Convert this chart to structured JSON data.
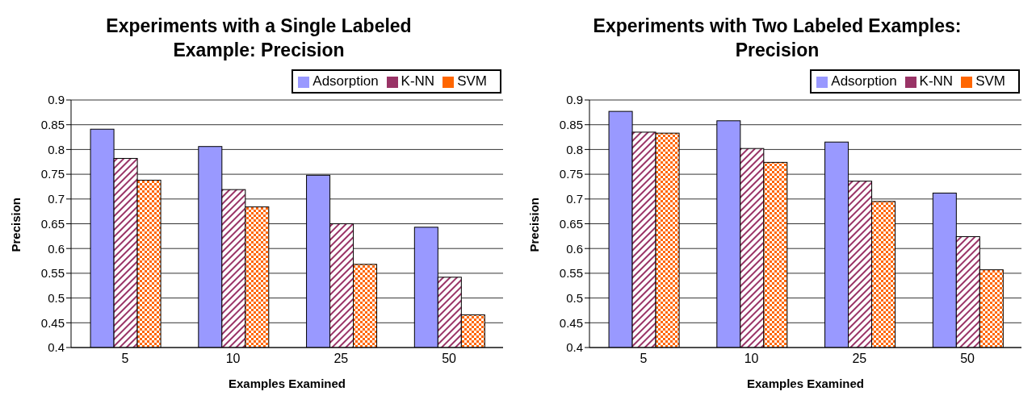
{
  "chart_data": [
    {
      "type": "bar",
      "title": "Experiments with a Single Labeled Example: Precision",
      "xlabel": "Examples Examined",
      "ylabel": "Precision",
      "categories": [
        "5",
        "10",
        "25",
        "50"
      ],
      "series": [
        {
          "name": "Adsorption",
          "color": "#9999ff",
          "values": [
            0.841,
            0.806,
            0.748,
            0.643
          ]
        },
        {
          "name": "K-NN",
          "color": "#993366",
          "values": [
            0.782,
            0.719,
            0.65,
            0.542
          ]
        },
        {
          "name": "SVM",
          "color": "#ff6600",
          "values": [
            0.738,
            0.684,
            0.568,
            0.466
          ]
        }
      ],
      "ylim": [
        0.4,
        0.9
      ],
      "yticks": [
        0.4,
        0.45,
        0.5,
        0.55,
        0.6,
        0.65,
        0.7,
        0.75,
        0.8,
        0.85,
        0.9
      ],
      "grid": "y",
      "legend": "top right"
    },
    {
      "type": "bar",
      "title": "Experiments with Two Labeled Examples: Precision",
      "xlabel": "Examples Examined",
      "ylabel": "Precision",
      "categories": [
        "5",
        "10",
        "25",
        "50"
      ],
      "series": [
        {
          "name": "Adsorption",
          "color": "#9999ff",
          "values": [
            0.877,
            0.858,
            0.815,
            0.712
          ]
        },
        {
          "name": "K-NN",
          "color": "#993366",
          "values": [
            0.835,
            0.802,
            0.736,
            0.624
          ]
        },
        {
          "name": "SVM",
          "color": "#ff6600",
          "values": [
            0.833,
            0.774,
            0.695,
            0.557
          ]
        }
      ],
      "ylim": [
        0.4,
        0.9
      ],
      "yticks": [
        0.4,
        0.45,
        0.5,
        0.55,
        0.6,
        0.65,
        0.7,
        0.75,
        0.8,
        0.85,
        0.9
      ],
      "grid": "y",
      "legend": "top right"
    }
  ]
}
